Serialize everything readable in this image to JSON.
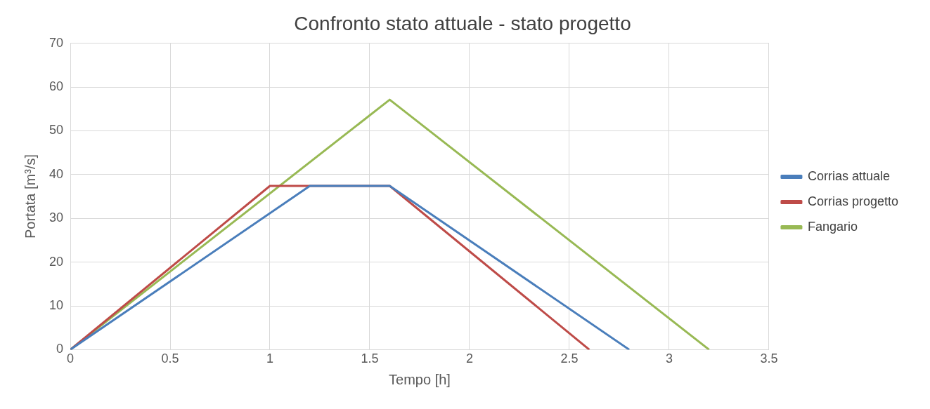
{
  "chart_data": {
    "type": "line",
    "title": "Confronto stato attuale - stato progetto",
    "xlabel": "Tempo [h]",
    "ylabel": "Portata [m³/s]",
    "xlim": [
      0,
      3.5
    ],
    "xticks": [
      0,
      0.5,
      1,
      1.5,
      2,
      2.5,
      3,
      3.5
    ],
    "ylim": [
      0,
      70
    ],
    "yticks": [
      0,
      10,
      20,
      30,
      40,
      50,
      60,
      70
    ],
    "grid": true,
    "legend": "right",
    "marker": "none",
    "line_style": "solid",
    "series": [
      {
        "name": "Corrias attuale",
        "color": "#4a7ebb",
        "x": [
          0,
          1.2,
          1.6,
          2.8
        ],
        "values": [
          0,
          37.4,
          37.4,
          0
        ]
      },
      {
        "name": "Corrias progetto",
        "color": "#be4b48",
        "x": [
          0,
          1,
          1.6,
          2.6
        ],
        "values": [
          0,
          37.4,
          37.4,
          0
        ]
      },
      {
        "name": "Fangario",
        "color": "#98b954",
        "x": [
          0,
          1.6,
          3.2
        ],
        "values": [
          0,
          57.1,
          0
        ]
      }
    ]
  }
}
